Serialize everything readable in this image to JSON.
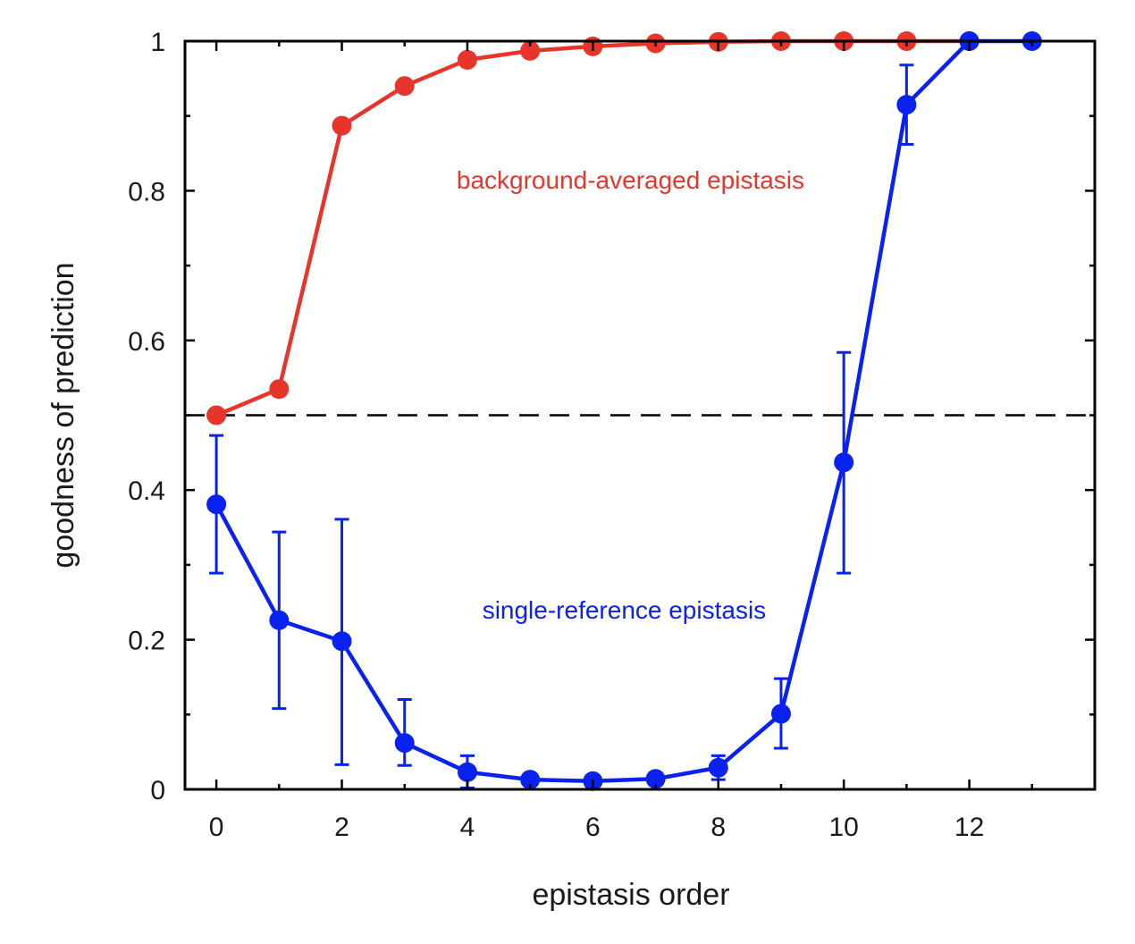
{
  "chart_data": {
    "type": "line",
    "xlabel": "epistasis order",
    "ylabel": "goodness of prediction",
    "xlim": [
      -0.5,
      14
    ],
    "ylim": [
      0,
      1
    ],
    "x_ticks": [
      0,
      2,
      4,
      6,
      8,
      10,
      12
    ],
    "y_ticks": [
      0,
      0.2,
      0.4,
      0.6,
      0.8,
      1
    ],
    "y_tick_labels": [
      "0",
      "0.2",
      "0.4",
      "0.6",
      "0.8",
      "1"
    ],
    "grid": false,
    "reference_line": {
      "y": 0.5,
      "style": "dashed",
      "color": "#000000"
    },
    "series": [
      {
        "color": "#e8352b",
        "x": [
          0,
          1,
          2,
          3,
          4,
          5,
          6,
          7,
          8,
          9,
          10,
          11,
          12
        ],
        "y": [
          0.5,
          0.535,
          0.887,
          0.94,
          0.975,
          0.987,
          0.993,
          0.997,
          0.999,
          1.0,
          1.0,
          1.0,
          1.0
        ]
      },
      {
        "color": "#0a22f0",
        "x": [
          0,
          1,
          2,
          3,
          4,
          5,
          6,
          7,
          8,
          9,
          10,
          11,
          12,
          13
        ],
        "y": [
          0.381,
          0.226,
          0.198,
          0.062,
          0.023,
          0.013,
          0.011,
          0.014,
          0.029,
          0.101,
          0.437,
          0.915,
          1.0,
          1.0
        ],
        "err_low": [
          0.289,
          0.108,
          0.033,
          0.032,
          0.002,
          0.006,
          0.005,
          0.006,
          0.013,
          0.055,
          0.289,
          0.862,
          1.0,
          1.0
        ],
        "err_high": [
          0.473,
          0.344,
          0.361,
          0.12,
          0.045,
          0.02,
          0.017,
          0.022,
          0.045,
          0.148,
          0.584,
          0.968,
          1.0,
          1.0
        ]
      }
    ],
    "annotations": [
      {
        "text": "background-averaged epistasis",
        "color": "#e8352b",
        "x": 6.6,
        "y": 0.815
      },
      {
        "text": "single-reference epistasis",
        "color": "#0a22f0",
        "x": 6.5,
        "y": 0.24
      }
    ]
  }
}
